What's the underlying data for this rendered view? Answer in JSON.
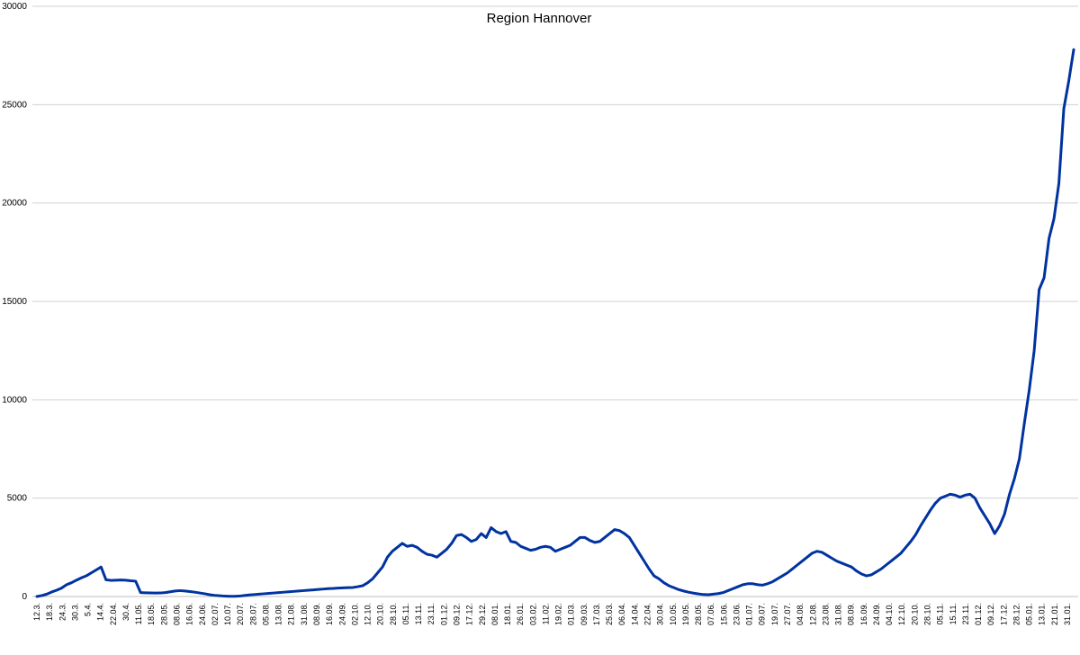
{
  "chart_data": {
    "type": "line",
    "title": "Region Hannover",
    "xlabel": "",
    "ylabel": "",
    "ylim": [
      0,
      30000
    ],
    "yticks": [
      "0",
      "5000",
      "10000",
      "15000",
      "20000",
      "25000",
      "30000"
    ],
    "grid": true,
    "legend": "none",
    "colors": {
      "series": "#0033a0",
      "grid": "#d0d0d0",
      "axis": "#bfbfbf"
    },
    "x_tick_labels": [
      "12.3.",
      "18.3.",
      "24.3.",
      "30.3.",
      "5.4.",
      "14.4.",
      "22.04.",
      "30.4.",
      "11.05.",
      "18.05.",
      "28.05.",
      "08.06.",
      "16.06.",
      "24.06.",
      "02.07.",
      "10.07.",
      "20.07.",
      "28.07.",
      "05.08.",
      "13.08.",
      "21.08.",
      "31.08.",
      "08.09.",
      "16.09.",
      "24.09.",
      "02.10.",
      "12.10.",
      "20.10.",
      "28.10.",
      "05.11.",
      "13.11.",
      "23.11.",
      "01.12.",
      "09.12.",
      "17.12.",
      "29.12.",
      "08.01.",
      "18.01.",
      "26.01.",
      "03.02.",
      "11.02.",
      "19.02.",
      "01.03.",
      "09.03.",
      "17.03.",
      "25.03.",
      "06.04.",
      "14.04.",
      "22.04.",
      "30.04.",
      "10.05.",
      "19.05.",
      "28.05.",
      "07.06.",
      "15.06.",
      "23.06.",
      "01.07.",
      "09.07.",
      "19.07.",
      "27.07.",
      "04.08.",
      "12.08.",
      "23.08.",
      "31.08.",
      "08.09.",
      "16.09.",
      "24.09.",
      "04.10.",
      "12.10.",
      "20.10.",
      "28.10.",
      "05.11.",
      "15.11.",
      "23.11.",
      "01.12.",
      "09.12.",
      "17.12.",
      "28.12.",
      "05.01.",
      "13.01.",
      "21.01.",
      "31.01."
    ],
    "series": [
      {
        "values": [
          0,
          50,
          120,
          230,
          320,
          430,
          600,
          700,
          830,
          950,
          1050,
          1200,
          1350,
          1500,
          850,
          820,
          830,
          840,
          830,
          800,
          780,
          200,
          190,
          180,
          175,
          180,
          200,
          240,
          280,
          300,
          280,
          250,
          220,
          180,
          140,
          90,
          60,
          40,
          20,
          10,
          10,
          20,
          50,
          80,
          100,
          120,
          140,
          160,
          180,
          200,
          220,
          240,
          260,
          280,
          300,
          320,
          340,
          360,
          380,
          400,
          410,
          430,
          440,
          450,
          460,
          500,
          550,
          700,
          900,
          1200,
          1500,
          2000,
          2300,
          2500,
          2700,
          2550,
          2600,
          2500,
          2300,
          2150,
          2100,
          2000,
          2200,
          2400,
          2700,
          3100,
          3150,
          3000,
          2800,
          2900,
          3200,
          3000,
          3500,
          3300,
          3200,
          3300,
          2800,
          2750,
          2550,
          2450,
          2350,
          2400,
          2500,
          2550,
          2500,
          2300,
          2400,
          2500,
          2600,
          2800,
          3000,
          3000,
          2850,
          2750,
          2800,
          3000,
          3200,
          3400,
          3350,
          3200,
          3000,
          2600,
          2200,
          1800,
          1400,
          1050,
          900,
          700,
          550,
          450,
          350,
          280,
          220,
          170,
          130,
          100,
          90,
          120,
          150,
          200,
          300,
          400,
          500,
          600,
          650,
          650,
          600,
          580,
          650,
          750,
          900,
          1050,
          1200,
          1400,
          1600,
          1800,
          2000,
          2200,
          2300,
          2250,
          2100,
          1950,
          1800,
          1700,
          1600,
          1500,
          1300,
          1150,
          1050,
          1100,
          1250,
          1400,
          1600,
          1800,
          2000,
          2200,
          2500,
          2800,
          3150,
          3600,
          4000,
          4400,
          4750,
          5000,
          5100,
          5200,
          5150,
          5050,
          5150,
          5200,
          5000,
          4500,
          4100,
          3700,
          3200,
          3600,
          4200,
          5200,
          6000,
          7000,
          8800,
          10500,
          12500,
          15600,
          16200,
          18200,
          19200,
          21000,
          24800,
          26200,
          27800
        ]
      }
    ]
  }
}
